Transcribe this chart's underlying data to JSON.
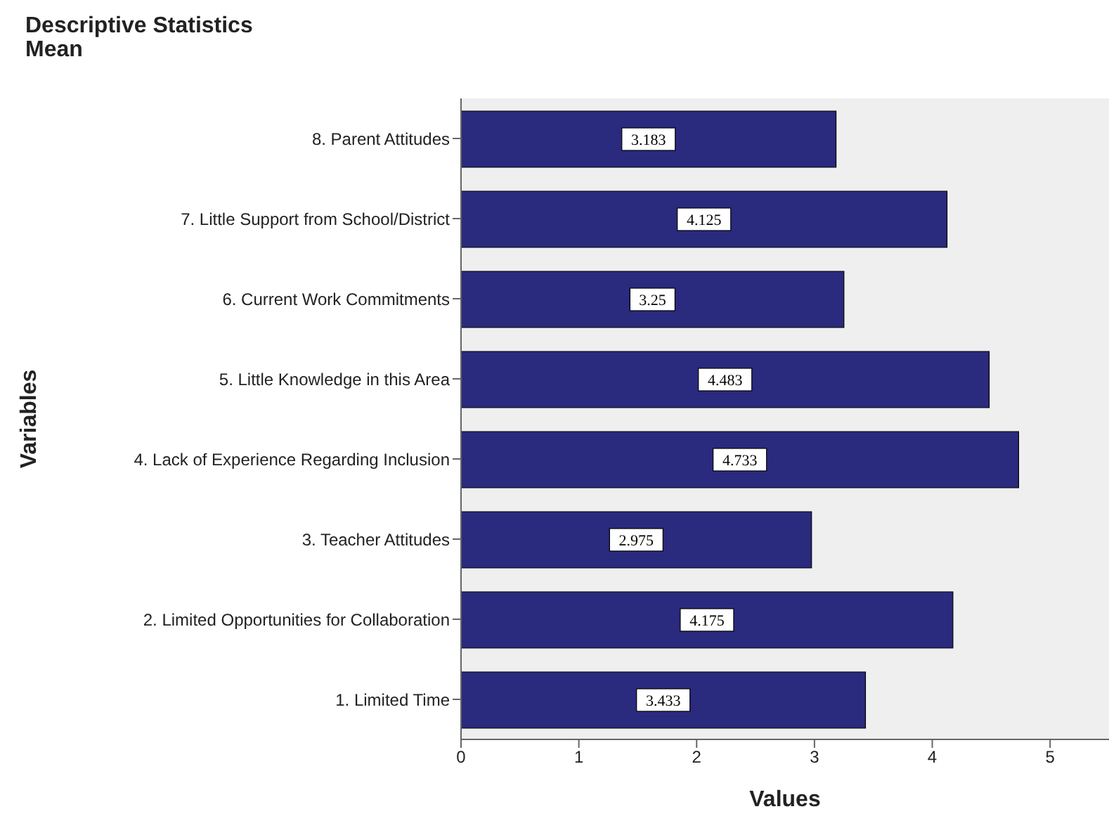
{
  "chart_data": {
    "type": "bar",
    "orientation": "horizontal",
    "title": "Descriptive Statistics",
    "subtitle": "Mean",
    "xlabel": "Values",
    "ylabel": "Variables",
    "categories": [
      "8. Parent Attitudes",
      "7. Little Support from School/District",
      "6. Current Work Commitments",
      "5. Little Knowledge in this Area",
      "4. Lack of Experience Regarding Inclusion",
      "3. Teacher Attitudes",
      "2. Limited Opportunities for Collaboration",
      "1. Limited Time"
    ],
    "values": [
      3.183,
      4.125,
      3.25,
      4.483,
      4.733,
      2.975,
      4.175,
      3.433
    ],
    "color": "#2a2a7e",
    "data_labels": true,
    "xlim": [
      0,
      5.5
    ],
    "xticks": [
      0,
      1,
      2,
      3,
      4,
      5
    ],
    "grid": false
  }
}
